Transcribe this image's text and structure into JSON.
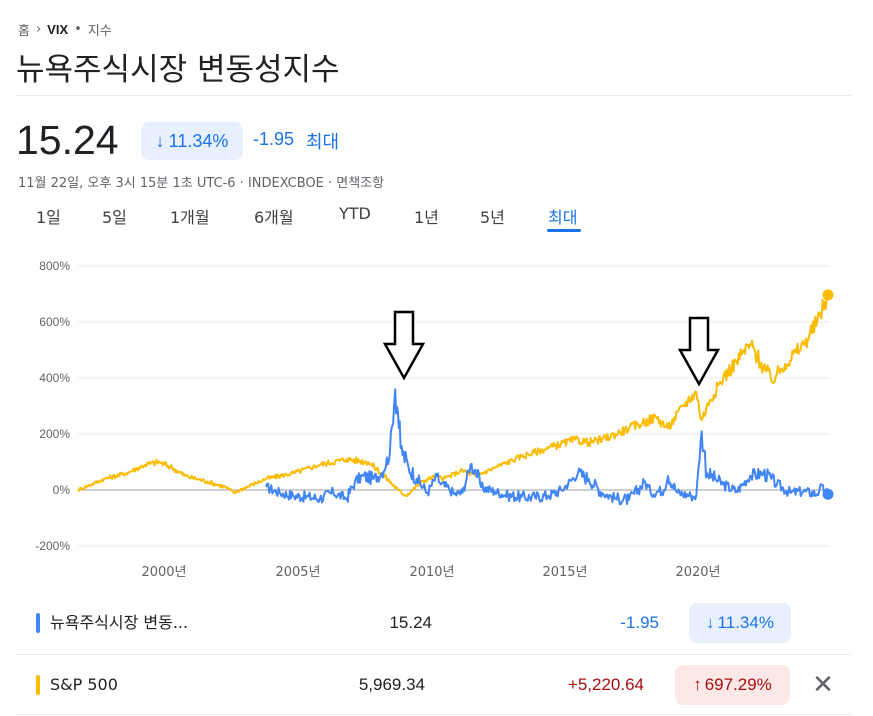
{
  "breadcrumb": {
    "home": "홈",
    "sep": "›",
    "symbol": "VIX",
    "dot": "•",
    "type": "지수"
  },
  "title": "뉴욕주식시장 변동성지수",
  "quote": {
    "price": "15.24",
    "pct": "11.34%",
    "change": "-1.95",
    "period": "최대",
    "meta": "11월 22일, 오후 3시 15분 1초 UTC-6 · INDEXCBOE · 면책조항"
  },
  "tabs": [
    "1일",
    "5일",
    "1개월",
    "6개월",
    "YTD",
    "1년",
    "5년",
    "최대"
  ],
  "active_tab": "최대",
  "colors": {
    "vix": "#4285f4",
    "sp500": "#fbbc04",
    "down": "#1a73e8",
    "up": "#c5221f",
    "down_bg": "#e8f0fe",
    "up_bg": "#fce8e6"
  },
  "chart_data": {
    "type": "line",
    "ylim": [
      -200,
      800
    ],
    "y_ticks": [
      "800%",
      "600%",
      "400%",
      "200%",
      "0%",
      "-200%"
    ],
    "x_ticks": [
      "2000년",
      "2005년",
      "2010년",
      "2015년",
      "2020년"
    ],
    "series": [
      {
        "name": "뉴욕주식시장 변동...",
        "x": [
          2004.0,
          2004.5,
          2005.0,
          2005.5,
          2006.0,
          2006.5,
          2007.0,
          2007.3,
          2007.6,
          2008.0,
          2008.3,
          2008.6,
          2008.8,
          2008.9,
          2009.0,
          2009.3,
          2009.6,
          2010.0,
          2010.35,
          2010.5,
          2010.8,
          2011.0,
          2011.3,
          2011.6,
          2011.8,
          2012.0,
          2012.5,
          2013.0,
          2013.5,
          2014.0,
          2014.5,
          2015.0,
          2015.6,
          2016.0,
          2016.5,
          2017.0,
          2017.5,
          2018.1,
          2018.3,
          2018.8,
          2018.95,
          2019.3,
          2019.8,
          2020.0,
          2020.2,
          2020.4,
          2020.7,
          2021.0,
          2021.5,
          2022.0,
          2022.5,
          2022.8,
          2023.0,
          2023.5,
          2024.0,
          2024.5,
          2024.6,
          2024.9
        ],
        "values": [
          10,
          -10,
          -20,
          -25,
          -30,
          -10,
          -30,
          30,
          50,
          40,
          60,
          130,
          360,
          280,
          150,
          80,
          40,
          -10,
          50,
          20,
          5,
          -15,
          -10,
          90,
          70,
          10,
          -5,
          -20,
          -25,
          -25,
          -20,
          0,
          60,
          40,
          -10,
          -30,
          -35,
          30,
          -10,
          0,
          50,
          -10,
          -20,
          -20,
          210,
          60,
          40,
          20,
          -5,
          50,
          60,
          40,
          20,
          -10,
          -5,
          -15,
          10,
          -15
        ]
      },
      {
        "name": "S&P 500",
        "x": [
          1997.0,
          1998.0,
          1998.8,
          1999.5,
          2000.0,
          2000.5,
          2001.0,
          2001.8,
          2002.5,
          2002.8,
          2003.5,
          2004.0,
          2005.0,
          2006.0,
          2007.0,
          2007.8,
          2008.3,
          2008.9,
          2009.2,
          2009.8,
          2010.3,
          2010.6,
          2011.3,
          2011.8,
          2012.5,
          2013.5,
          2014.5,
          2015.5,
          2016.0,
          2016.5,
          2017.5,
          2018.0,
          2018.5,
          2018.95,
          2019.5,
          2020.0,
          2020.2,
          2020.5,
          2021.0,
          2021.5,
          2022.0,
          2022.8,
          2023.3,
          2024.0,
          2024.5,
          2024.9
        ],
        "values": [
          0,
          40,
          60,
          90,
          100,
          80,
          50,
          30,
          10,
          -10,
          20,
          40,
          60,
          90,
          110,
          100,
          60,
          0,
          -20,
          30,
          50,
          40,
          70,
          50,
          80,
          120,
          150,
          180,
          170,
          180,
          220,
          240,
          260,
          220,
          300,
          350,
          250,
          320,
          400,
          460,
          520,
          390,
          450,
          520,
          600,
          697
        ]
      }
    ]
  },
  "comparison": [
    {
      "name": "뉴욕주식시장 변동...",
      "value": "15.24",
      "change": "-1.95",
      "pct": "11.34%",
      "direction": "down"
    },
    {
      "name": "S&P 500",
      "value": "5,969.34",
      "change": "+5,220.64",
      "pct": "697.29%",
      "direction": "up",
      "removable": true
    }
  ]
}
